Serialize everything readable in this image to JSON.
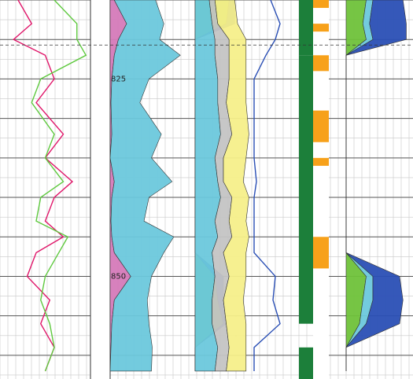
{
  "chart_data": {
    "type": "area",
    "depth_axis": {
      "orientation": "vertical",
      "range": [
        815,
        863
      ],
      "tick_labels": [
        {
          "value": 825,
          "text": "825"
        },
        {
          "value": 850,
          "text": "850"
        }
      ],
      "major_step": 5,
      "minor_step": 2.5,
      "dashed_marker_depth": 820.7
    },
    "grid": true,
    "colors": {
      "grid_minor": "#c8c8c8",
      "grid_major": "#555555",
      "magenta": "#e0176a",
      "gray": "#c4c4c4",
      "green": "#6fc23a",
      "blue": "#2a4fb5",
      "cyan": "#6cc8dc",
      "yellow": "#f5ef8a",
      "red": "#e21d1d",
      "orange": "#f7a11a",
      "dark_green": "#1c7f3a",
      "pink": "#d57ab9",
      "lime_line": "#5ec93e"
    },
    "depth": [
      815,
      818,
      820,
      822,
      825,
      828,
      832,
      835,
      838,
      840,
      843,
      845,
      847,
      850,
      853,
      856,
      859,
      862
    ],
    "tracks": [
      {
        "kind": "curves",
        "series": [
          {
            "name": "",
            "values": [
              0.2,
              0.35,
              0.15,
              0.5,
              0.6,
              0.4,
              0.7,
              0.5,
              0.8,
              0.6,
              0.5,
              0.7,
              0.4,
              0.3,
              0.55,
              0.45,
              0.6,
              0.5
            ]
          },
          {
            "name": "",
            "values": [
              0.6,
              0.85,
              0.85,
              0.95,
              0.45,
              0.35,
              0.6,
              0.5,
              0.7,
              0.45,
              0.4,
              0.75,
              0.65,
              0.5,
              0.45,
              0.55,
              0.6,
              0.5
            ]
          }
        ]
      },
      {
        "kind": "stacked",
        "series": [
          {
            "name": "",
            "values": [
              0.05,
              0.2,
              0.1,
              0.05,
              0.02,
              0.01,
              0.02,
              0.0,
              0.05,
              0.02,
              0.01,
              0.02,
              0.05,
              0.25,
              0.05,
              0.02,
              0.01,
              0.0
            ]
          },
          {
            "name": "",
            "values": [
              0.5,
              0.45,
              0.5,
              0.8,
              0.45,
              0.35,
              0.6,
              0.5,
              0.7,
              0.45,
              0.4,
              0.75,
              0.6,
              0.25,
              0.4,
              0.45,
              0.5,
              0.5
            ]
          }
        ]
      },
      {
        "kind": "stacked",
        "series": [
          {
            "name": "",
            "values": [
              0.6,
              0.55,
              0.0,
              0.0,
              0.0,
              0.0,
              0.0,
              0.0,
              0.0,
              0.0,
              0.0,
              0.0,
              0.0,
              0.35,
              0.4,
              0.5,
              0.0,
              0.0
            ]
          },
          {
            "name": "",
            "values": [
              0.1,
              0.15,
              0.0,
              0.0,
              0.0,
              0.0,
              0.0,
              0.0,
              0.0,
              0.0,
              0.0,
              0.0,
              0.0,
              0.15,
              0.1,
              0.05,
              0.0,
              0.0
            ]
          }
        ]
      },
      {
        "kind": "stacked",
        "series": [
          {
            "name": "",
            "values": [
              0.25,
              0.3,
              0.35,
              0.35,
              0.4,
              0.4,
              0.45,
              0.35,
              0.4,
              0.45,
              0.35,
              0.4,
              0.3,
              0.35,
              0.3,
              0.3,
              0.4,
              0.35
            ]
          },
          {
            "name": "",
            "values": [
              0.1,
              0.1,
              0.25,
              0.25,
              0.2,
              0.15,
              0.2,
              0.15,
              0.1,
              0.2,
              0.25,
              0.25,
              0.2,
              0.25,
              0.2,
              0.25,
              0.2,
              0.2
            ]
          },
          {
            "name": "",
            "values": [
              0.35,
              0.35,
              0.3,
              0.3,
              0.3,
              0.35,
              0.3,
              0.4,
              0.35,
              0.3,
              0.3,
              0.3,
              0.4,
              0.3,
              0.35,
              0.35,
              0.3,
              0.35
            ]
          }
        ]
      },
      {
        "kind": "curves",
        "series": [
          {
            "name": "",
            "values": [
              0.4,
              0.6,
              0.5,
              0.3,
              0.05,
              0.05,
              0.05,
              0.05,
              0.1,
              0.05,
              0.05,
              0.05,
              0.05,
              0.5,
              0.45,
              0.6,
              0.05,
              0.05
            ]
          }
        ]
      },
      {
        "kind": "intervals",
        "intervals": [
          {
            "top": 815,
            "bottom": 822,
            "color": "dark_green"
          },
          {
            "top": 822,
            "bottom": 856,
            "color": "dark_green"
          },
          {
            "top": 859,
            "bottom": 863,
            "color": "dark_green"
          }
        ]
      },
      {
        "kind": "intervals",
        "intervals": [
          {
            "top": 815,
            "bottom": 816,
            "color": "orange"
          },
          {
            "top": 818,
            "bottom": 819,
            "color": "orange"
          },
          {
            "top": 822,
            "bottom": 824,
            "color": "orange"
          },
          {
            "top": 829,
            "bottom": 833,
            "color": "orange"
          },
          {
            "top": 835,
            "bottom": 836,
            "color": "orange"
          },
          {
            "top": 845,
            "bottom": 849,
            "color": "orange"
          }
        ]
      },
      {
        "kind": "stacked",
        "series": [
          {
            "name": "",
            "values": [
              0.3,
              0.25,
              0.3,
              0.0,
              0.0,
              0.0,
              0.0,
              0.0,
              0.0,
              0.0,
              0.0,
              0.0,
              0.0,
              0.3,
              0.25,
              0.2,
              0.0,
              0.0
            ]
          },
          {
            "name": "",
            "values": [
              0.1,
              0.1,
              0.1,
              0.0,
              0.0,
              0.0,
              0.0,
              0.0,
              0.0,
              0.0,
              0.0,
              0.0,
              0.0,
              0.1,
              0.15,
              0.1,
              0.0,
              0.0
            ]
          },
          {
            "name": "",
            "values": [
              0.45,
              0.55,
              0.5,
              0.0,
              0.0,
              0.0,
              0.0,
              0.0,
              0.0,
              0.0,
              0.0,
              0.0,
              0.0,
              0.4,
              0.45,
              0.5,
              0.0,
              0.0
            ]
          }
        ]
      }
    ]
  }
}
